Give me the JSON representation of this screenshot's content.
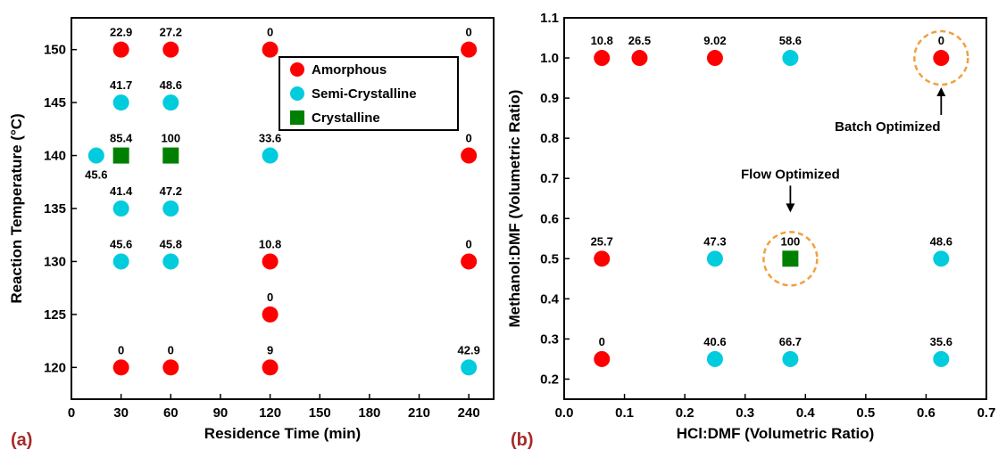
{
  "colors": {
    "amorphous": "#ff0000",
    "semi_crystalline": "#00ccdd",
    "crystalline": "#008000",
    "highlight_circle": "#f0a040",
    "panel_label": "#a52a2a"
  },
  "chart_data": [
    {
      "type": "scatter",
      "panel_label": "(a)",
      "xlabel": "Residence Time (min)",
      "ylabel": "Reaction Temperature (°C)",
      "xlim": [
        0,
        255
      ],
      "ylim": [
        117,
        153
      ],
      "xticks": [
        0,
        30,
        60,
        90,
        120,
        150,
        180,
        210,
        240
      ],
      "yticks": [
        120,
        125,
        130,
        135,
        140,
        145,
        150
      ],
      "legend": {
        "position": "top-right",
        "entries": [
          {
            "key": "amorphous",
            "label": "Amorphous",
            "marker": "circle"
          },
          {
            "key": "semi_crystalline",
            "label": "Semi-Crystalline",
            "marker": "circle"
          },
          {
            "key": "crystalline",
            "label": "Crystalline",
            "marker": "square"
          }
        ]
      },
      "points": [
        {
          "x": 30,
          "y": 150,
          "cls": "amorphous",
          "label": "22.9"
        },
        {
          "x": 60,
          "y": 150,
          "cls": "amorphous",
          "label": "27.2"
        },
        {
          "x": 120,
          "y": 150,
          "cls": "amorphous",
          "label": "0"
        },
        {
          "x": 240,
          "y": 150,
          "cls": "amorphous",
          "label": "0"
        },
        {
          "x": 30,
          "y": 145,
          "cls": "semi_crystalline",
          "label": "41.7"
        },
        {
          "x": 60,
          "y": 145,
          "cls": "semi_crystalline",
          "label": "48.6"
        },
        {
          "x": 15,
          "y": 140,
          "cls": "semi_crystalline",
          "label": "45.6",
          "label_pos": "below"
        },
        {
          "x": 30,
          "y": 140,
          "cls": "crystalline",
          "label": "85.4"
        },
        {
          "x": 60,
          "y": 140,
          "cls": "crystalline",
          "label": "100"
        },
        {
          "x": 120,
          "y": 140,
          "cls": "semi_crystalline",
          "label": "33.6"
        },
        {
          "x": 240,
          "y": 140,
          "cls": "amorphous",
          "label": "0"
        },
        {
          "x": 30,
          "y": 135,
          "cls": "semi_crystalline",
          "label": "41.4"
        },
        {
          "x": 60,
          "y": 135,
          "cls": "semi_crystalline",
          "label": "47.2"
        },
        {
          "x": 30,
          "y": 130,
          "cls": "semi_crystalline",
          "label": "45.6"
        },
        {
          "x": 60,
          "y": 130,
          "cls": "semi_crystalline",
          "label": "45.8"
        },
        {
          "x": 120,
          "y": 130,
          "cls": "amorphous",
          "label": "10.8"
        },
        {
          "x": 240,
          "y": 130,
          "cls": "amorphous",
          "label": "0"
        },
        {
          "x": 120,
          "y": 125,
          "cls": "amorphous",
          "label": "0"
        },
        {
          "x": 30,
          "y": 120,
          "cls": "amorphous",
          "label": "0"
        },
        {
          "x": 60,
          "y": 120,
          "cls": "amorphous",
          "label": "0"
        },
        {
          "x": 120,
          "y": 120,
          "cls": "amorphous",
          "label": "9"
        },
        {
          "x": 240,
          "y": 120,
          "cls": "semi_crystalline",
          "label": "42.9"
        }
      ]
    },
    {
      "type": "scatter",
      "panel_label": "(b)",
      "xlabel": "HCl:DMF (Volumetric Ratio)",
      "ylabel": "Methanol:DMF (Volumetric Ratio)",
      "xlim": [
        0,
        0.7
      ],
      "ylim": [
        0.15,
        1.1
      ],
      "xticks": [
        0.0,
        0.1,
        0.2,
        0.3,
        0.4,
        0.5,
        0.6,
        0.7
      ],
      "yticks": [
        0.2,
        0.3,
        0.4,
        0.5,
        0.6,
        0.7,
        0.8,
        0.9,
        1.0,
        1.1
      ],
      "points": [
        {
          "x": 0.0625,
          "y": 1.0,
          "cls": "amorphous",
          "label": "10.8"
        },
        {
          "x": 0.125,
          "y": 1.0,
          "cls": "amorphous",
          "label": "26.5"
        },
        {
          "x": 0.25,
          "y": 1.0,
          "cls": "amorphous",
          "label": "9.02"
        },
        {
          "x": 0.375,
          "y": 1.0,
          "cls": "semi_crystalline",
          "label": "58.6"
        },
        {
          "x": 0.625,
          "y": 1.0,
          "cls": "amorphous",
          "label": "0",
          "highlight": true
        },
        {
          "x": 0.0625,
          "y": 0.5,
          "cls": "amorphous",
          "label": "25.7"
        },
        {
          "x": 0.25,
          "y": 0.5,
          "cls": "semi_crystalline",
          "label": "47.3"
        },
        {
          "x": 0.375,
          "y": 0.5,
          "cls": "crystalline",
          "label": "100",
          "highlight": true
        },
        {
          "x": 0.625,
          "y": 0.5,
          "cls": "semi_crystalline",
          "label": "48.6"
        },
        {
          "x": 0.0625,
          "y": 0.25,
          "cls": "amorphous",
          "label": "0"
        },
        {
          "x": 0.25,
          "y": 0.25,
          "cls": "semi_crystalline",
          "label": "40.6"
        },
        {
          "x": 0.375,
          "y": 0.25,
          "cls": "semi_crystalline",
          "label": "66.7"
        },
        {
          "x": 0.625,
          "y": 0.25,
          "cls": "semi_crystalline",
          "label": "35.6"
        }
      ],
      "annotations": [
        {
          "text": "Batch Optimized",
          "x": 0.625,
          "y": 1.0,
          "position": "below"
        },
        {
          "text": "Flow Optimized",
          "x": 0.375,
          "y": 0.5,
          "position": "above"
        }
      ]
    }
  ]
}
